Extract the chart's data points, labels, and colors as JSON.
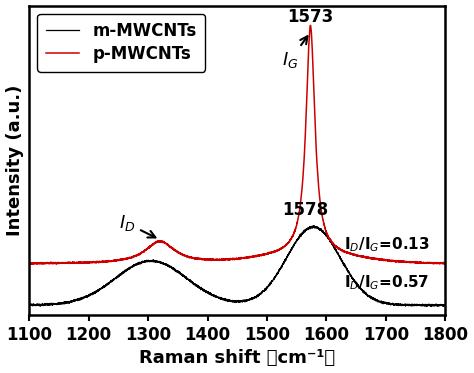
{
  "xmin": 1100,
  "xmax": 1800,
  "xlabel": "Raman shift （cm⁻¹）",
  "ylabel": "Intensity (a.u.)",
  "legend_m": "m-MWCNTs",
  "legend_p": "p-MWCNTs",
  "m_color": "#000000",
  "p_color": "#cc0000",
  "label_fontsize": 13,
  "tick_fontsize": 12,
  "legend_fontsize": 12,
  "annot_fontsize": 13,
  "peak_label_fontsize": 12,
  "ratio_fontsize": 11,
  "xticks": [
    1100,
    1200,
    1300,
    1400,
    1500,
    1600,
    1700,
    1800
  ],
  "ratio_p_text": "I$_D$/I$_G$=0.13",
  "ratio_m_text": "I$_D$/I$_G$=0.57"
}
